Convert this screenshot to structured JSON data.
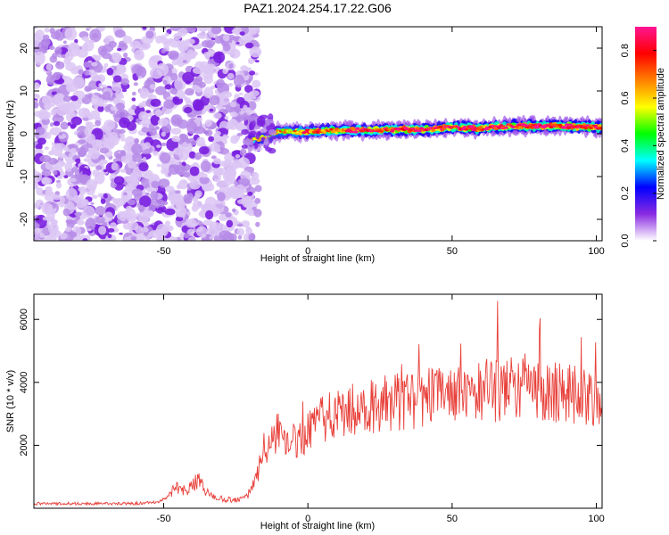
{
  "title": "PAZ1.2024.254.17.22.G06",
  "chart_data": [
    {
      "type": "heatmap",
      "xlabel": "Height of straight line (km)",
      "ylabel": "Frequency (Hz)",
      "xlim": [
        -95,
        102
      ],
      "ylim": [
        -25,
        25
      ],
      "xticks": [
        -50,
        0,
        50,
        100
      ],
      "yticks": [
        -20,
        -10,
        0,
        10,
        20
      ],
      "colorbar": {
        "label": "Normalized spectral amplitude",
        "range": [
          0.0,
          0.9
        ],
        "ticks": [
          0.0,
          0.2,
          0.4,
          0.6,
          0.8
        ],
        "colors": [
          "#ffffff",
          "#8a2be2",
          "#0000ff",
          "#00ffff",
          "#00ff00",
          "#ffff00",
          "#ff8000",
          "#ff0000",
          "#ff1493"
        ]
      },
      "noise_region_x": [
        -95,
        -20
      ],
      "ridge": {
        "x": [
          -20,
          -15,
          -10,
          0,
          10,
          20,
          30,
          40,
          50,
          60,
          70,
          80,
          90,
          100,
          102
        ],
        "frequency": [
          -1.5,
          -1.0,
          0.5,
          0.5,
          0.8,
          0.8,
          1.0,
          1.0,
          1.5,
          1.2,
          1.8,
          1.8,
          1.8,
          1.5,
          1.5
        ],
        "amplitude": [
          0.25,
          0.35,
          0.45,
          0.6,
          0.7,
          0.75,
          0.8,
          0.82,
          0.85,
          0.85,
          0.87,
          0.88,
          0.88,
          0.86,
          0.86
        ]
      }
    },
    {
      "type": "line",
      "xlabel": "Height of straight line (km)",
      "ylabel": "SNR (10 * v/v)",
      "xlim": [
        -95,
        102
      ],
      "ylim": [
        0,
        6800
      ],
      "xticks": [
        -50,
        0,
        50,
        100
      ],
      "yticks": [
        2000,
        4000,
        6000
      ],
      "color": "#e8403a",
      "series": [
        {
          "x": [
            -95,
            -60,
            -52,
            -48,
            -46,
            -44,
            -42,
            -40,
            -38,
            -36,
            -34,
            -30,
            -26,
            -22,
            -20,
            -18,
            -16,
            -14,
            -12,
            -10,
            -8,
            -6,
            -4,
            -2,
            0,
            5,
            10,
            15,
            20,
            25,
            30,
            35,
            40,
            45,
            50,
            55,
            60,
            65,
            70,
            75,
            80,
            85,
            90,
            95,
            100,
            102
          ],
          "y": [
            150,
            150,
            200,
            400,
            700,
            600,
            500,
            700,
            900,
            600,
            400,
            300,
            250,
            300,
            500,
            900,
            1600,
            2000,
            2300,
            2400,
            2300,
            2200,
            2100,
            2200,
            2400,
            2800,
            3000,
            3100,
            3200,
            3300,
            3400,
            3400,
            3500,
            3500,
            3600,
            3600,
            3700,
            3700,
            3800,
            3800,
            3700,
            3700,
            3600,
            3600,
            3600,
            3700
          ]
        }
      ]
    }
  ]
}
